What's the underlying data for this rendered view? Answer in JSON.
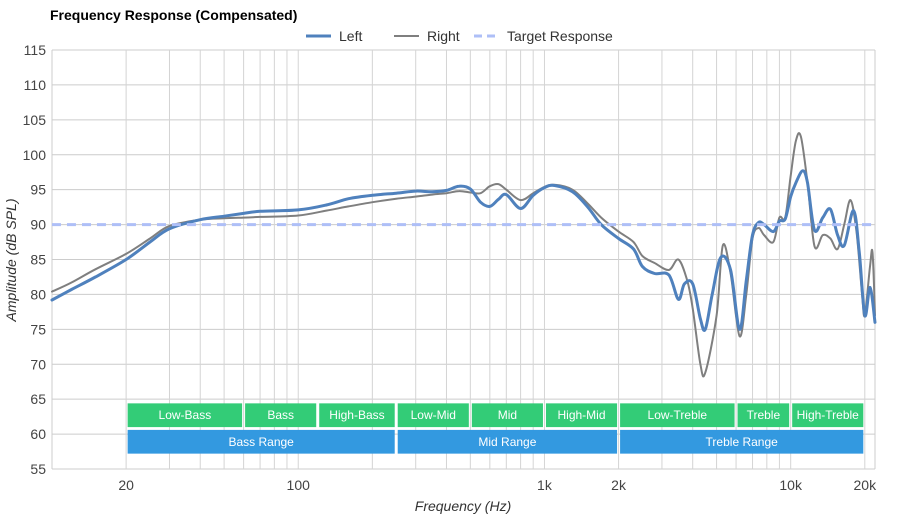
{
  "chart_data": {
    "type": "line",
    "title": "Frequency Response (Compensated)",
    "xlabel": "Frequency (Hz)",
    "ylabel": "Amplitude (dB SPL)",
    "xscale": "log",
    "xlim": [
      10,
      22000
    ],
    "ylim": [
      55,
      115
    ],
    "yticks": [
      55,
      60,
      65,
      70,
      75,
      80,
      85,
      90,
      95,
      100,
      105,
      110,
      115
    ],
    "xticks": [
      {
        "value": 20,
        "label": "20"
      },
      {
        "value": 100,
        "label": "100"
      },
      {
        "value": 1000,
        "label": "1k"
      },
      {
        "value": 2000,
        "label": "2k"
      },
      {
        "value": 10000,
        "label": "10k"
      },
      {
        "value": 20000,
        "label": "20k"
      }
    ],
    "grid": true,
    "legend_position": "top-center",
    "series": [
      {
        "name": "Left",
        "color": "#4f81bd",
        "style": "solid",
        "points": [
          [
            10,
            79.2
          ],
          [
            12,
            80.7
          ],
          [
            15,
            82.5
          ],
          [
            20,
            85
          ],
          [
            25,
            87.5
          ],
          [
            30,
            89.4
          ],
          [
            40,
            90.7
          ],
          [
            50,
            91.2
          ],
          [
            60,
            91.6
          ],
          [
            70,
            91.9
          ],
          [
            100,
            92.1
          ],
          [
            130,
            92.8
          ],
          [
            160,
            93.7
          ],
          [
            200,
            94.2
          ],
          [
            250,
            94.5
          ],
          [
            300,
            94.8
          ],
          [
            350,
            94.7
          ],
          [
            400,
            94.9
          ],
          [
            450,
            95.5
          ],
          [
            500,
            95.1
          ],
          [
            550,
            93.2
          ],
          [
            600,
            92.6
          ],
          [
            650,
            93.6
          ],
          [
            700,
            94.3
          ],
          [
            800,
            92.3
          ],
          [
            900,
            94.2
          ],
          [
            1000,
            95.3
          ],
          [
            1100,
            95.6
          ],
          [
            1300,
            94.7
          ],
          [
            1500,
            92.5
          ],
          [
            1700,
            90
          ],
          [
            2000,
            88
          ],
          [
            2300,
            86.5
          ],
          [
            2500,
            84
          ],
          [
            2800,
            83
          ],
          [
            3200,
            82.8
          ],
          [
            3500,
            79.3
          ],
          [
            3700,
            81.5
          ],
          [
            4000,
            81.5
          ],
          [
            4300,
            76.5
          ],
          [
            4500,
            75
          ],
          [
            4800,
            80
          ],
          [
            5200,
            85.3
          ],
          [
            5700,
            83.5
          ],
          [
            6200,
            75
          ],
          [
            6600,
            82
          ],
          [
            7000,
            88.5
          ],
          [
            7400,
            90.3
          ],
          [
            7800,
            90
          ],
          [
            8500,
            89
          ],
          [
            9000,
            90.5
          ],
          [
            9500,
            90.8
          ],
          [
            10000,
            94
          ],
          [
            10500,
            96
          ],
          [
            11200,
            97.7
          ],
          [
            11700,
            96
          ],
          [
            12500,
            89.2
          ],
          [
            13500,
            91
          ],
          [
            14500,
            92.2
          ],
          [
            15500,
            88.5
          ],
          [
            16500,
            87
          ],
          [
            18000,
            92
          ],
          [
            19000,
            86
          ],
          [
            20000,
            77
          ],
          [
            21000,
            81
          ],
          [
            22000,
            76
          ]
        ]
      },
      {
        "name": "Right",
        "color": "#7f7f7f",
        "style": "solid",
        "points": [
          [
            10,
            80.4
          ],
          [
            12,
            81.7
          ],
          [
            15,
            83.6
          ],
          [
            20,
            85.8
          ],
          [
            25,
            88
          ],
          [
            30,
            89.8
          ],
          [
            40,
            90.7
          ],
          [
            50,
            90.9
          ],
          [
            60,
            91
          ],
          [
            70,
            91.1
          ],
          [
            100,
            91.3
          ],
          [
            130,
            92
          ],
          [
            160,
            92.6
          ],
          [
            200,
            93.2
          ],
          [
            250,
            93.7
          ],
          [
            300,
            94
          ],
          [
            350,
            94.3
          ],
          [
            400,
            94.5
          ],
          [
            450,
            94.8
          ],
          [
            500,
            94.6
          ],
          [
            550,
            94.5
          ],
          [
            600,
            95.5
          ],
          [
            650,
            95.8
          ],
          [
            700,
            95
          ],
          [
            800,
            93.5
          ],
          [
            900,
            94.5
          ],
          [
            1000,
            95.4
          ],
          [
            1100,
            95.7
          ],
          [
            1300,
            95
          ],
          [
            1500,
            93
          ],
          [
            1700,
            91
          ],
          [
            2000,
            89
          ],
          [
            2300,
            87.5
          ],
          [
            2500,
            85.5
          ],
          [
            2800,
            84.5
          ],
          [
            3200,
            83.5
          ],
          [
            3500,
            85
          ],
          [
            3800,
            82
          ],
          [
            4000,
            78
          ],
          [
            4300,
            70
          ],
          [
            4500,
            68.8
          ],
          [
            5000,
            77
          ],
          [
            5300,
            87
          ],
          [
            5700,
            83
          ],
          [
            6200,
            74
          ],
          [
            6600,
            80
          ],
          [
            7000,
            88
          ],
          [
            7400,
            89.5
          ],
          [
            7800,
            88.5
          ],
          [
            8500,
            87.5
          ],
          [
            9000,
            91
          ],
          [
            9500,
            91
          ],
          [
            10000,
            97
          ],
          [
            10500,
            102
          ],
          [
            11000,
            102.6
          ],
          [
            11700,
            96
          ],
          [
            12500,
            86.9
          ],
          [
            13500,
            88.5
          ],
          [
            14500,
            88
          ],
          [
            15500,
            86.5
          ],
          [
            16500,
            90
          ],
          [
            17500,
            93.5
          ],
          [
            18500,
            89
          ],
          [
            19500,
            80
          ],
          [
            20000,
            77
          ],
          [
            21000,
            84
          ],
          [
            21500,
            86
          ],
          [
            22000,
            77
          ]
        ]
      },
      {
        "name": "Target Response",
        "color": "#aebff7",
        "style": "dashed",
        "points": [
          [
            10,
            90
          ],
          [
            22000,
            90
          ]
        ]
      }
    ],
    "bands_top": [
      {
        "label": "Low-Bass",
        "from": 20,
        "to": 60
      },
      {
        "label": "Bass",
        "from": 60,
        "to": 120
      },
      {
        "label": "High-Bass",
        "from": 120,
        "to": 250
      },
      {
        "label": "Low-Mid",
        "from": 250,
        "to": 500
      },
      {
        "label": "Mid",
        "from": 500,
        "to": 1000
      },
      {
        "label": "High-Mid",
        "from": 1000,
        "to": 2000
      },
      {
        "label": "Low-Treble",
        "from": 2000,
        "to": 6000
      },
      {
        "label": "Treble",
        "from": 6000,
        "to": 10000
      },
      {
        "label": "High-Treble",
        "from": 10000,
        "to": 20000
      }
    ],
    "bands_bottom": [
      {
        "label": "Bass Range",
        "from": 20,
        "to": 250
      },
      {
        "label": "Mid Range",
        "from": 250,
        "to": 2000
      },
      {
        "label": "Treble Range",
        "from": 2000,
        "to": 20000
      }
    ],
    "band_colors": {
      "top": "#33cc77",
      "bottom": "#3399e0"
    },
    "band_y": {
      "top": [
        61,
        64.4
      ],
      "bottom": [
        57.2,
        60.6
      ]
    }
  }
}
